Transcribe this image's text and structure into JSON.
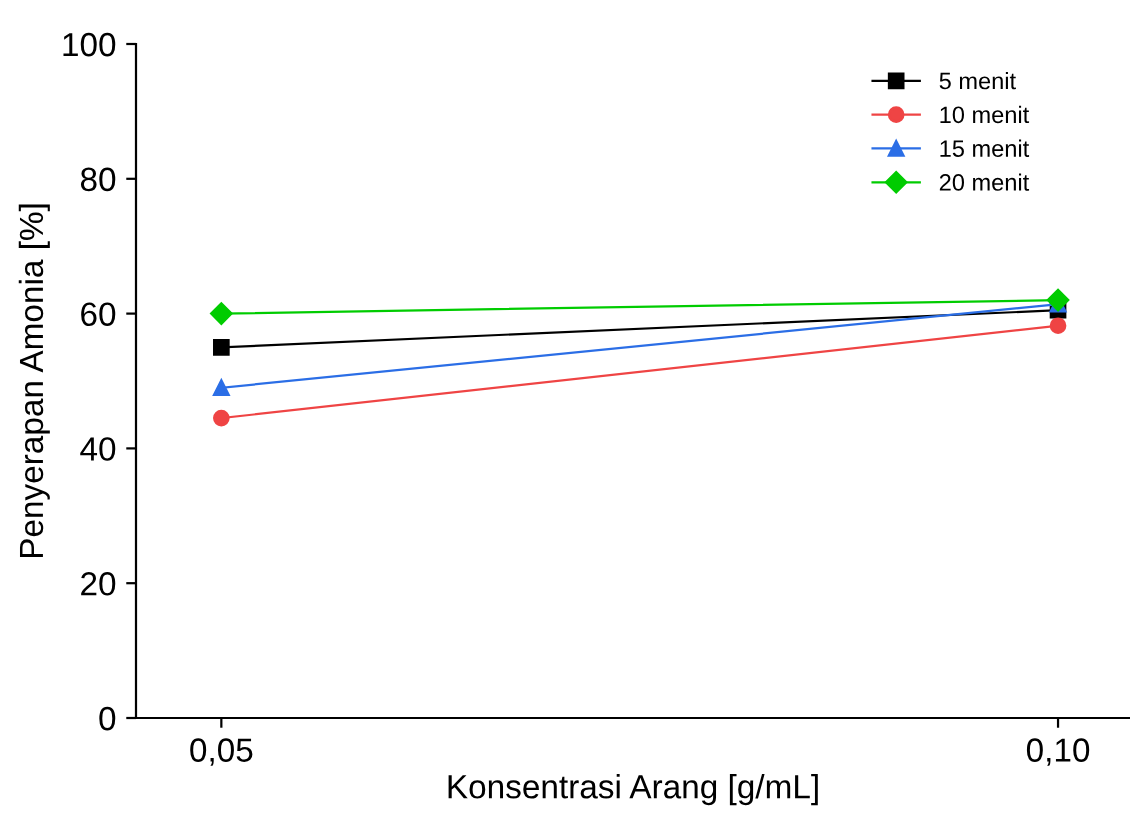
{
  "chart_data": {
    "type": "line",
    "xlabel": "Konsentrasi Arang [g/mL]",
    "ylabel": "Penyerapan Amonia [%]",
    "x": [
      0.05,
      0.1
    ],
    "series": [
      {
        "name": "5 menit",
        "color": "#000000",
        "values": [
          55,
          60.5
        ],
        "marker": "square"
      },
      {
        "name": "10 menit",
        "color": "#ef4444",
        "values": [
          44.5,
          58.2
        ],
        "marker": "circle"
      },
      {
        "name": "15 menit",
        "color": "#2b6ee6",
        "values": [
          49,
          61.4
        ],
        "marker": "triangle"
      },
      {
        "name": "20 menit",
        "color": "#00cc00",
        "values": [
          60,
          62
        ],
        "marker": "diamond"
      }
    ],
    "xlim": [
      0.0449,
      0.1043
    ],
    "xticks": [
      {
        "value": 0.05,
        "label": "0,05"
      },
      {
        "value": 0.1,
        "label": "0,10"
      }
    ],
    "ylim": [
      0,
      100
    ],
    "yticks": [
      0,
      20,
      40,
      60,
      80,
      100
    ],
    "grid": false,
    "legend": "top right",
    "line_style": "solid"
  }
}
